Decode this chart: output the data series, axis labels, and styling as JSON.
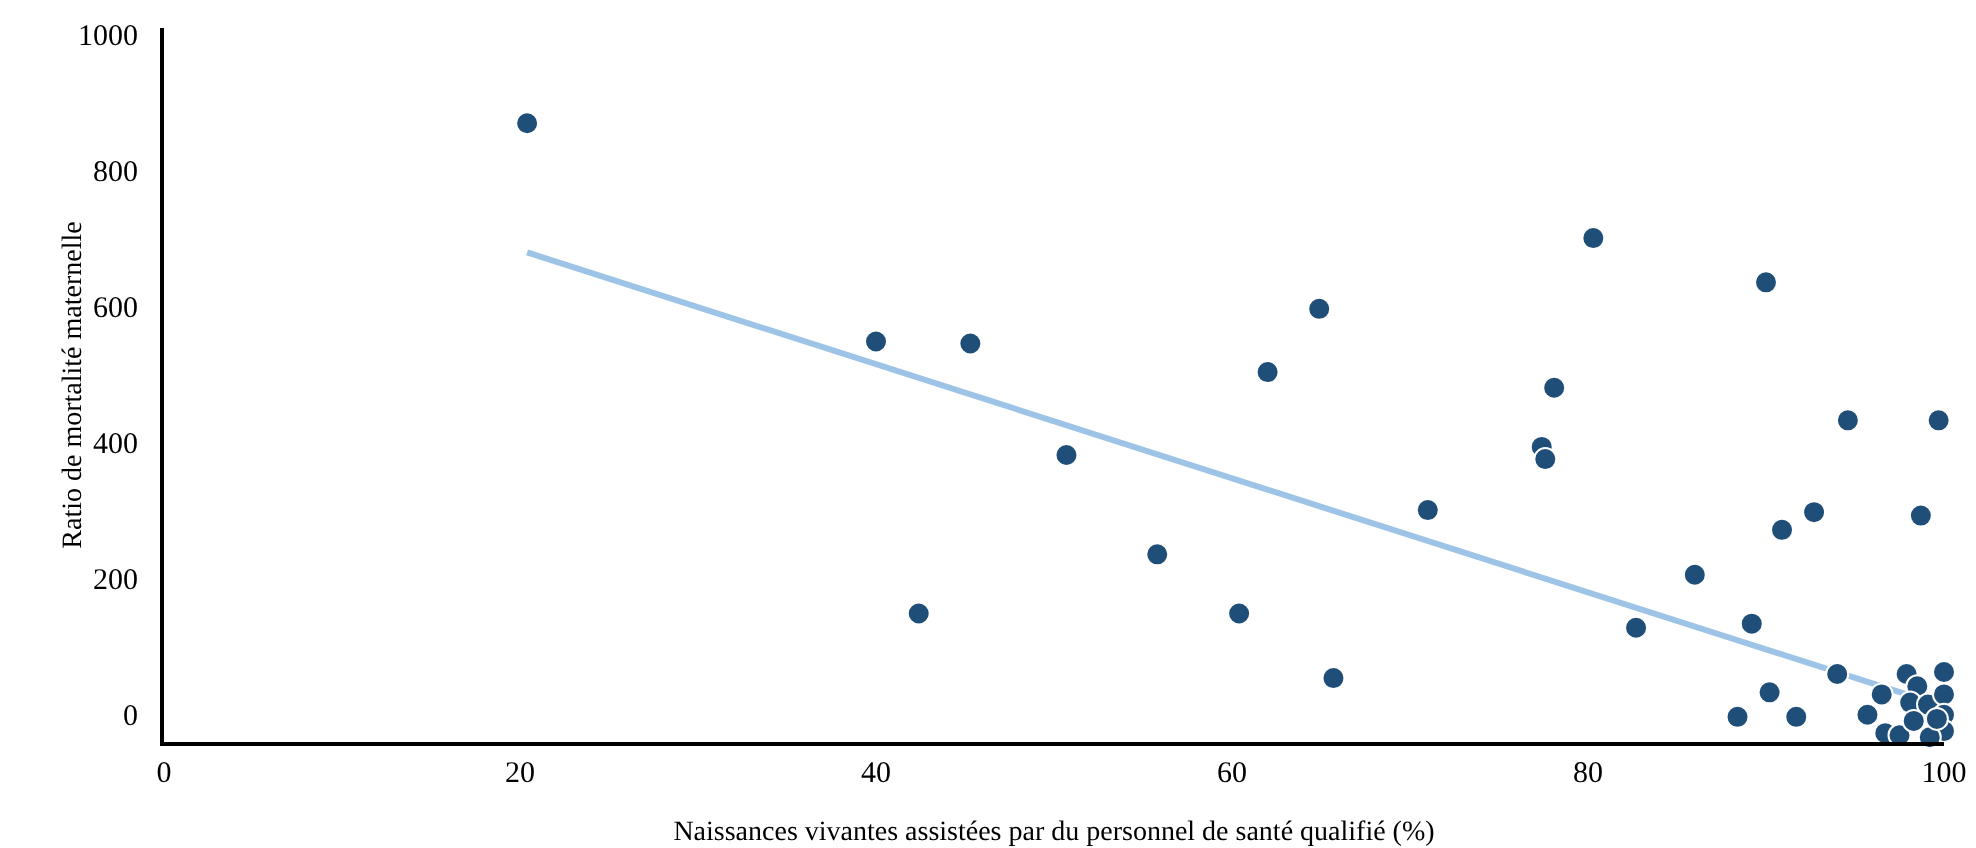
{
  "chart_data": {
    "type": "scatter",
    "xlabel": "Naissances vivantes assistées par du personnel de santé qualifié (%)",
    "ylabel": "Ratio de mortalité maternelle",
    "xlim": [
      0,
      100
    ],
    "ylim": [
      -40,
      1010
    ],
    "xticks": [
      0,
      20,
      40,
      60,
      80,
      100
    ],
    "yticks": [
      0,
      200,
      400,
      600,
      800,
      1000
    ],
    "grid": false,
    "legend": false,
    "line_style": "solid",
    "series": [
      {
        "marker": "circle",
        "color": "#1f4e79",
        "x": [
          20.4,
          40,
          45.3,
          42.4,
          50.7,
          55.8,
          60.4,
          62,
          64.9,
          65.7,
          71,
          77.4,
          77.6,
          78.1,
          80.3,
          82.7,
          86,
          88.4,
          89.2,
          90,
          90.2,
          90.9,
          91.7,
          92.7,
          94.6,
          94,
          95.7,
          96.5,
          96.7,
          97.9,
          98.7,
          99.7,
          100,
          98.5,
          98.1,
          99.1,
          100,
          100,
          100,
          97.5,
          99.2,
          98.3,
          99.6
        ],
        "values": [
          870,
          549,
          546,
          149,
          382,
          236,
          149,
          504,
          597,
          54,
          301,
          394,
          376,
          481,
          701,
          128,
          206,
          -3,
          134,
          636,
          33,
          272,
          -3,
          298,
          433,
          60,
          0,
          30,
          -27,
          60,
          293,
          433,
          63,
          42,
          18,
          15,
          30,
          0,
          -24,
          -30,
          -33,
          -9,
          -6
        ]
      },
      {
        "type": "line",
        "marker": "none",
        "color": "#9dc3e6",
        "x": [
          20.4,
          97.9
        ],
        "values": [
          680,
          30
        ]
      }
    ]
  }
}
